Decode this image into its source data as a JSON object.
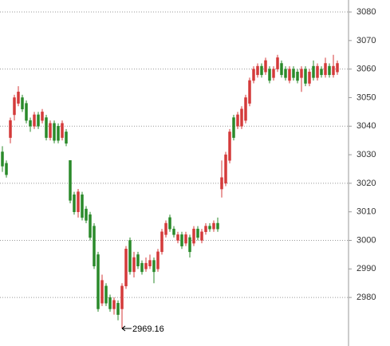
{
  "chart_data": {
    "type": "candlestick",
    "open": [
      3031,
      3027,
      3036,
      3044,
      3048,
      3050,
      3048,
      3042,
      3040,
      3044,
      3042,
      3043,
      3036,
      3041,
      3040,
      3036,
      3038,
      3028,
      3016,
      3010,
      3016,
      3011,
      3009,
      3005,
      2995,
      2978,
      2984,
      2980,
      2976,
      2978,
      2976,
      2984,
      3000,
      2989,
      2995,
      2992,
      2990,
      2991,
      2993,
      2990,
      2996,
      3002,
      3008,
      3004,
      3000,
      3002,
      2999,
      3001,
      2999,
      3004,
      3000,
      3003,
      3005,
      3004,
      3006,
      3018,
      3020,
      3028,
      3043,
      3040,
      3040,
      3042,
      3048,
      3056,
      3058,
      3061,
      3059,
      3060,
      3057,
      3060,
      3062,
      3060,
      3056,
      3060,
      3059,
      3057,
      3060,
      3055,
      3061,
      3057,
      3060,
      3058,
      3061,
      3058,
      3059
    ],
    "high": [
      3033,
      3028,
      3043,
      3051,
      3054,
      3051,
      3049,
      3043,
      3045,
      3045,
      3046,
      3044,
      3042,
      3042,
      3041,
      3042,
      3039,
      3028,
      3017,
      3018,
      3017,
      3012,
      3010,
      3006,
      2996,
      2988,
      2985,
      2981,
      2980,
      2979,
      2985,
      2998,
      3001,
      2996,
      2996,
      2993,
      2994,
      2995,
      2994,
      2997,
      3004,
      3007,
      3009,
      3005,
      3003,
      3003,
      3003,
      3002,
      3005,
      3005,
      3004,
      3006,
      3006,
      3007,
      3008,
      3028,
      3031,
      3039,
      3044,
      3045,
      3047,
      3051,
      3057,
      3061,
      3062,
      3062,
      3064,
      3061,
      3061,
      3065,
      3063,
      3061,
      3061,
      3061,
      3060,
      3061,
      3061,
      3060,
      3063,
      3062,
      3061,
      3064,
      3062,
      3065,
      3063
    ],
    "low": [
      3024,
      3022,
      3034,
      3042,
      3047,
      3045,
      3041,
      3038,
      3039,
      3039,
      3041,
      3035,
      3035,
      3034,
      3034,
      3035,
      3033,
      3013,
      3009,
      3008,
      3007,
      3006,
      3000,
      2990,
      2975,
      2977,
      2977,
      2975,
      2974,
      2972,
      2969.16,
      2983,
      2988,
      2987,
      2990,
      2988,
      2989,
      2990,
      2985,
      2989,
      2995,
      3001,
      3003,
      3001,
      2999,
      2997,
      2998,
      2994,
      2998,
      3000,
      2999,
      3002,
      3003,
      3003,
      3003,
      3015,
      3019,
      3027,
      3035,
      3039,
      3039,
      3041,
      3047,
      3055,
      3057,
      3057,
      3058,
      3055,
      3056,
      3059,
      3057,
      3056,
      3055,
      3056,
      3055,
      3052,
      3054,
      3054,
      3056,
      3056,
      3057,
      3057,
      3057,
      3057,
      3058
    ],
    "close": [
      3026,
      3023,
      3042,
      3050,
      3052,
      3046,
      3042,
      3040,
      3044,
      3040,
      3045,
      3036,
      3041,
      3035,
      3035,
      3041,
      3034,
      3014,
      3010,
      3017,
      3008,
      3007,
      3001,
      2991,
      2976,
      2986,
      2978,
      2976,
      2979,
      2974,
      2984,
      2997,
      2989,
      2994,
      2991,
      2989,
      2992,
      2993,
      2989,
      2996,
      3003,
      3006,
      3004,
      3002,
      3002,
      2998,
      3002,
      2996,
      3004,
      3001,
      3003,
      3005,
      3004,
      3006,
      3004,
      3022,
      3030,
      3038,
      3036,
      3044,
      3046,
      3050,
      3056,
      3060,
      3061,
      3058,
      3063,
      3056,
      3060,
      3064,
      3058,
      3057,
      3060,
      3057,
      3056,
      3060,
      3055,
      3059,
      3057,
      3061,
      3058,
      3062,
      3058,
      3061,
      3062
    ],
    "up_color": "#d43a3a",
    "down_color": "#2a8a2a",
    "ylim": [
      2963,
      3084.2
    ],
    "yticks": [
      2980,
      2990,
      3000,
      3010,
      3020,
      3030,
      3040,
      3050,
      3060,
      3070,
      3080
    ],
    "grid": true,
    "min_annotation": 2969.16
  }
}
